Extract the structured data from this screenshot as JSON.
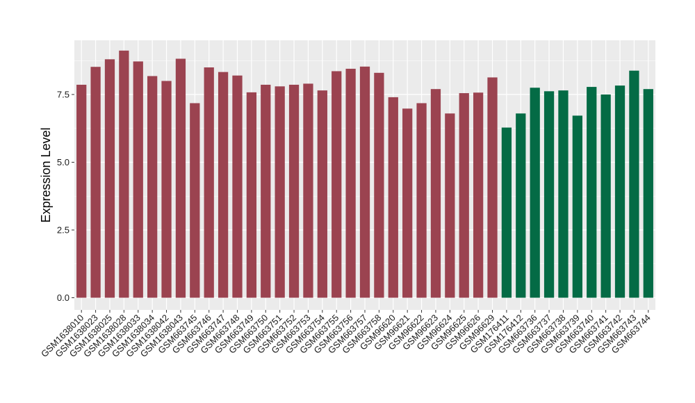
{
  "chart_data": {
    "type": "bar",
    "title": "",
    "xlabel": "",
    "ylabel": "Expression Level",
    "ylim": [
      0,
      9.5
    ],
    "yticks": [
      0.0,
      2.5,
      5.0,
      7.5
    ],
    "ytick_labels": [
      "0.0",
      "2.5",
      "5.0",
      "7.5"
    ],
    "grid": true,
    "legend": "none",
    "colors": {
      "group_1": "#9b4350",
      "group_2": "#046b45",
      "panel_bg": "#ebebeb",
      "grid": "#ffffff"
    },
    "categories": [
      "GSM1638010",
      "GSM1638023",
      "GSM1638025",
      "GSM1638028",
      "GSM1638033",
      "GSM1638034",
      "GSM1638042",
      "GSM1638043",
      "GSM663745",
      "GSM663746",
      "GSM663747",
      "GSM663748",
      "GSM663749",
      "GSM663750",
      "GSM663751",
      "GSM663752",
      "GSM663753",
      "GSM663754",
      "GSM663755",
      "GSM663756",
      "GSM663757",
      "GSM663758",
      "GSM96620",
      "GSM96621",
      "GSM96622",
      "GSM96623",
      "GSM96624",
      "GSM96625",
      "GSM96626",
      "GSM96629",
      "GSM176411",
      "GSM176412",
      "GSM663736",
      "GSM663737",
      "GSM663738",
      "GSM663739",
      "GSM663740",
      "GSM663741",
      "GSM663742",
      "GSM663743",
      "GSM663744"
    ],
    "values": [
      7.86,
      8.52,
      8.8,
      9.12,
      8.72,
      8.18,
      8.0,
      8.82,
      7.18,
      8.5,
      8.33,
      8.2,
      7.58,
      7.86,
      7.8,
      7.86,
      7.9,
      7.65,
      8.36,
      8.45,
      8.53,
      8.3,
      7.4,
      6.98,
      7.18,
      7.7,
      6.8,
      7.55,
      7.57,
      8.13,
      6.28,
      6.8,
      7.75,
      7.62,
      7.65,
      6.72,
      7.78,
      7.5,
      7.83,
      8.38,
      7.7
    ],
    "groups": [
      1,
      1,
      1,
      1,
      1,
      1,
      1,
      1,
      1,
      1,
      1,
      1,
      1,
      1,
      1,
      1,
      1,
      1,
      1,
      1,
      1,
      1,
      1,
      1,
      1,
      1,
      1,
      1,
      1,
      1,
      2,
      2,
      2,
      2,
      2,
      2,
      2,
      2,
      2,
      2,
      2
    ]
  }
}
